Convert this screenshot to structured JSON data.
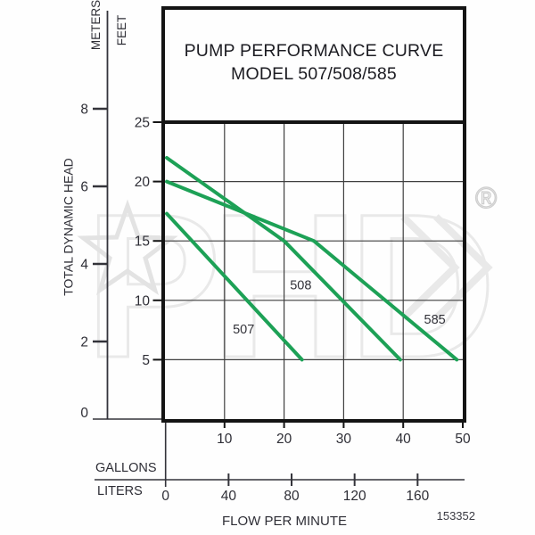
{
  "header": {
    "title": "PUMP PERFORMANCE CURVE",
    "subtitle": "MODEL 507/508/585"
  },
  "doc_number": "153352",
  "watermark": {
    "name": "phd-logo",
    "letters": "PHD",
    "registered_symbol": "®"
  },
  "chart_data": {
    "type": "line",
    "title": "PUMP PERFORMANCE CURVE",
    "subtitle": "MODEL 507/508/585",
    "xlabel": "FLOW PER MINUTE",
    "ylabel": "TOTAL DYNAMIC HEAD",
    "grid": true,
    "legend": "inline-curve-labels",
    "x_axis": {
      "gallons": {
        "label": "GALLONS",
        "ticks": [
          10,
          20,
          30,
          40,
          50
        ],
        "range": [
          0,
          50
        ]
      },
      "liters": {
        "label": "LITERS",
        "ticks": [
          0,
          40,
          80,
          120,
          160
        ],
        "range": [
          0,
          189
        ]
      }
    },
    "y_axis": {
      "feet": {
        "label": "FEET",
        "ticks": [
          25,
          20,
          15,
          10,
          5
        ],
        "range": [
          0,
          25
        ]
      },
      "meters": {
        "label": "METERS",
        "ticks": [
          8,
          6,
          4,
          2,
          0
        ],
        "range": [
          0,
          8.6
        ]
      }
    },
    "curve_color": "#1da156",
    "series": [
      {
        "name": "507",
        "points_gpm_ft": [
          [
            0,
            17.3
          ],
          [
            23,
            5
          ]
        ],
        "label_at_gpm_ft": [
          13.2,
          7.6
        ]
      },
      {
        "name": "508",
        "points_gpm_ft": [
          [
            0,
            22
          ],
          [
            20,
            15
          ],
          [
            39.5,
            5
          ]
        ],
        "label_at_gpm_ft": [
          22.8,
          11.3
        ]
      },
      {
        "name": "585",
        "points_gpm_ft": [
          [
            0,
            20
          ],
          [
            25,
            15
          ],
          [
            49,
            5
          ]
        ],
        "label_at_gpm_ft": [
          45.3,
          8.4
        ]
      }
    ]
  }
}
